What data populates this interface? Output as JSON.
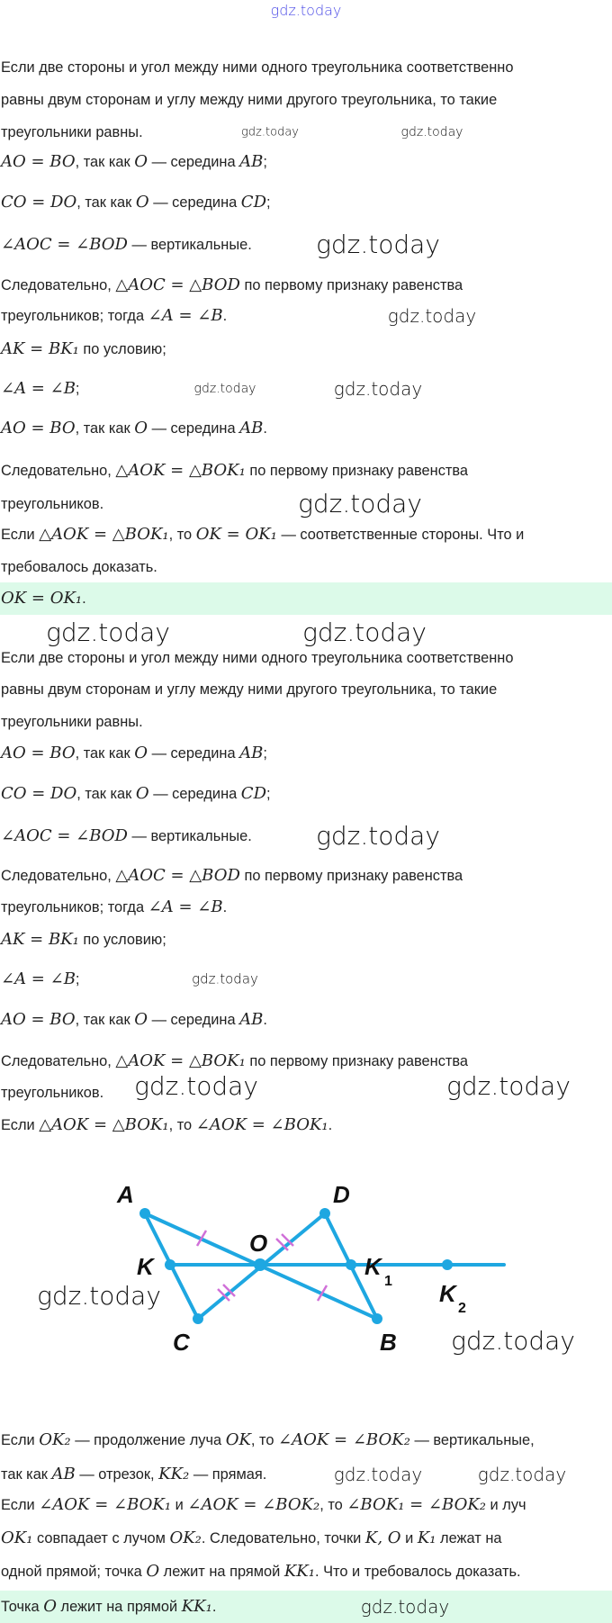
{
  "watermark": "gdz.today",
  "colors": {
    "answer_bg": "#dcfae9",
    "figure_line": "#1ea7e1",
    "tick_marks": "#d070d8",
    "watermark_top": "#4a4ae6"
  },
  "lines": [
    [
      [
        "Если две стороны и угол между ними одного треугольника соответственно",
        0
      ]
    ],
    [
      [
        "равны двум сторонам и углу между ними другого треугольника, то такие",
        0
      ]
    ],
    [
      [
        "треугольники равны.",
        0
      ]
    ],
    [
      [
        "AO = BO",
        1
      ],
      [
        ", так как ",
        0
      ],
      [
        "O",
        1
      ],
      [
        " — середина ",
        0
      ],
      [
        "AB",
        1
      ],
      [
        ";",
        0
      ]
    ],
    [
      [
        "CO = DO",
        1
      ],
      [
        ", так как ",
        0
      ],
      [
        "O",
        1
      ],
      [
        " — середина ",
        0
      ],
      [
        "CD",
        1
      ],
      [
        ";",
        0
      ]
    ],
    [
      [
        "∠AOC = ∠BOD",
        1
      ],
      [
        " — вертикальные.",
        0
      ]
    ],
    [
      [
        "Следовательно, ",
        0
      ],
      [
        "△AOC = △BOD",
        1
      ],
      [
        " по первому признаку равенства",
        0
      ]
    ],
    [
      [
        "треугольников; тогда ",
        0
      ],
      [
        "∠A = ∠B",
        1
      ],
      [
        ".",
        0
      ]
    ],
    [
      [
        "AK = BK₁",
        1
      ],
      [
        " по условию;",
        0
      ]
    ],
    [
      [
        "∠A = ∠B",
        1
      ],
      [
        ";",
        0
      ]
    ],
    [
      [
        "AO = BO",
        1
      ],
      [
        ", так как ",
        0
      ],
      [
        "O",
        1
      ],
      [
        " — середина ",
        0
      ],
      [
        "AB",
        1
      ],
      [
        ".",
        0
      ]
    ],
    [
      [
        "Следовательно, ",
        0
      ],
      [
        "△AOK = △BOK₁",
        1
      ],
      [
        " по первому признаку равенства",
        0
      ]
    ],
    [
      [
        "треугольников.",
        0
      ]
    ],
    [
      [
        "Если ",
        0
      ],
      [
        "△AOK = △BOK₁",
        1
      ],
      [
        ", то ",
        0
      ],
      [
        "OK = OK₁",
        1
      ],
      [
        " — соответственные стороны. Что и",
        0
      ]
    ],
    [
      [
        "требовалось доказать.",
        0
      ]
    ],
    [
      [
        "OK = OK₁",
        1
      ],
      [
        ".",
        0
      ]
    ],
    [
      [
        "Если две стороны и угол между ними одного треугольника соответственно",
        0
      ]
    ],
    [
      [
        "равны двум сторонам и углу между ними другого треугольника, то такие",
        0
      ]
    ],
    [
      [
        "треугольники равны.",
        0
      ]
    ],
    [
      [
        "AO = BO",
        1
      ],
      [
        ", так как ",
        0
      ],
      [
        "O",
        1
      ],
      [
        " — середина ",
        0
      ],
      [
        "AB",
        1
      ],
      [
        ";",
        0
      ]
    ],
    [
      [
        "CO = DO",
        1
      ],
      [
        ", так как ",
        0
      ],
      [
        "O",
        1
      ],
      [
        " — середина ",
        0
      ],
      [
        "CD",
        1
      ],
      [
        ";",
        0
      ]
    ],
    [
      [
        "∠AOC = ∠BOD",
        1
      ],
      [
        " — вертикальные.",
        0
      ]
    ],
    [
      [
        "Следовательно, ",
        0
      ],
      [
        "△AOC = △BOD",
        1
      ],
      [
        " по первому признаку равенства",
        0
      ]
    ],
    [
      [
        "треугольников; тогда ",
        0
      ],
      [
        "∠A = ∠B",
        1
      ],
      [
        ".",
        0
      ]
    ],
    [
      [
        "AK = BK₁",
        1
      ],
      [
        " по условию;",
        0
      ]
    ],
    [
      [
        "∠A = ∠B",
        1
      ],
      [
        ";",
        0
      ]
    ],
    [
      [
        "AO = BO",
        1
      ],
      [
        ", так как ",
        0
      ],
      [
        "O",
        1
      ],
      [
        " — середина ",
        0
      ],
      [
        "AB",
        1
      ],
      [
        ".",
        0
      ]
    ],
    [
      [
        "Следовательно, ",
        0
      ],
      [
        "△AOK = △BOK₁",
        1
      ],
      [
        " по первому признаку равенства",
        0
      ]
    ],
    [
      [
        "треугольников.",
        0
      ]
    ],
    [
      [
        "Если ",
        0
      ],
      [
        "△AOK = △BOK₁",
        1
      ],
      [
        ", то ",
        0
      ],
      [
        "∠AOK = ∠BOK₁",
        1
      ],
      [
        ".",
        0
      ]
    ],
    [
      [
        "Если ",
        0
      ],
      [
        "OK₂",
        1
      ],
      [
        " — продолжение луча ",
        0
      ],
      [
        "OK",
        1
      ],
      [
        ", то ",
        0
      ],
      [
        "∠AOK = ∠BOK₂",
        1
      ],
      [
        " — вертикальные,",
        0
      ]
    ],
    [
      [
        "так как ",
        0
      ],
      [
        "AB",
        1
      ],
      [
        " — отрезок, ",
        0
      ],
      [
        "KK₂",
        1
      ],
      [
        " — прямая.",
        0
      ]
    ],
    [
      [
        "Если ",
        0
      ],
      [
        "∠AOK = ∠BOK₁",
        1
      ],
      [
        " и ",
        0
      ],
      [
        "∠AOK = ∠BOK₂",
        1
      ],
      [
        ", то ",
        0
      ],
      [
        "∠BOK₁ = ∠BOK₂",
        1
      ],
      [
        " и луч",
        0
      ]
    ],
    [
      [
        "OK₁",
        1
      ],
      [
        " совпадает с лучом ",
        0
      ],
      [
        "OK₂",
        1
      ],
      [
        ". Следовательно, точки ",
        0
      ],
      [
        "K, O",
        1
      ],
      [
        " и ",
        0
      ],
      [
        "K₁",
        1
      ],
      [
        " лежат на",
        0
      ]
    ],
    [
      [
        "одной прямой; точка ",
        0
      ],
      [
        "O",
        1
      ],
      [
        " лежит на прямой ",
        0
      ],
      [
        "KK₁",
        1
      ],
      [
        ". Что и требовалось доказать.",
        0
      ]
    ],
    [
      [
        "Точка ",
        0
      ],
      [
        "O",
        1
      ],
      [
        " лежит на прямой ",
        0
      ],
      [
        "KK₁",
        1
      ],
      [
        ".",
        0
      ]
    ]
  ],
  "figure": {
    "points": {
      "A": "A",
      "D": "D",
      "K": "K",
      "O": "O",
      "K1": "K",
      "K1_sub": "1",
      "K2": "K",
      "K2_sub": "2",
      "C": "C",
      "B": "B"
    }
  }
}
